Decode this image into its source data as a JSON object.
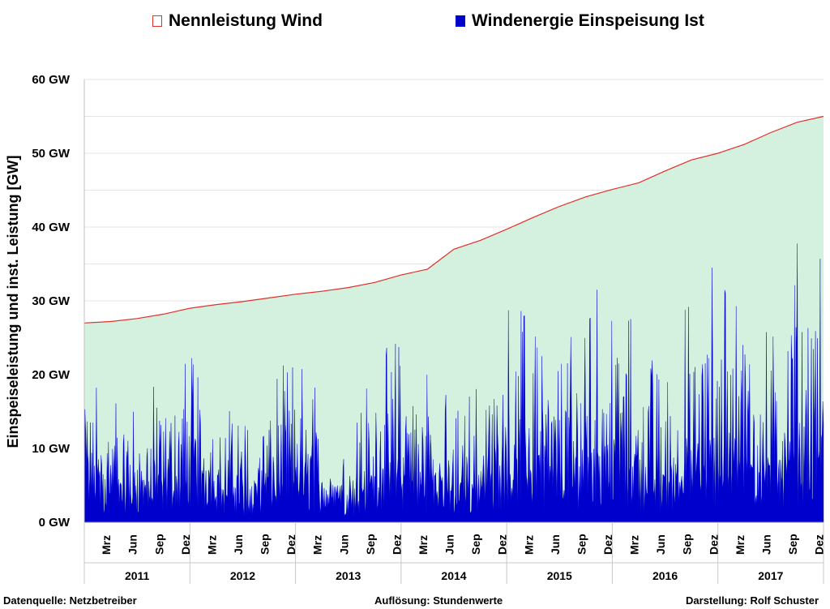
{
  "legend": {
    "capacity": "Nennleistung Wind",
    "feedin": "Windenergie Einspeisung Ist"
  },
  "footer": {
    "source": "Datenquelle:  Netzbetreiber",
    "resolution": "Auflösung: Stundenwerte",
    "author": "Darstellung: Rolf Schuster"
  },
  "chart_data": {
    "type": "area",
    "ylabel": "Einspeiseleistung und   inst. Leistung   [GW]",
    "ylim": [
      0,
      60
    ],
    "yticks": [
      "0 GW",
      "10 GW",
      "20 GW",
      "30 GW",
      "40 GW",
      "50 GW",
      "60 GW"
    ],
    "years": [
      "2011",
      "2012",
      "2013",
      "2014",
      "2015",
      "2016",
      "2017"
    ],
    "month_ticks": [
      "Mrz",
      "Jun",
      "Sep",
      "Dez"
    ],
    "grid": true,
    "legend_position": "top",
    "colors": {
      "capacity_line": "#e0302a",
      "capacity_fill": "#d4f0df",
      "feedin": "#0000cd",
      "grid": "#e4e4e4"
    },
    "series": [
      {
        "name": "Nennleistung Wind",
        "x": [
          "2011-01",
          "2011-04",
          "2011-07",
          "2011-10",
          "2012-01",
          "2012-04",
          "2012-07",
          "2012-10",
          "2013-01",
          "2013-04",
          "2013-07",
          "2013-10",
          "2014-01",
          "2014-04",
          "2014-07",
          "2014-10",
          "2015-01",
          "2015-04",
          "2015-07",
          "2015-10",
          "2016-01",
          "2016-04",
          "2016-07",
          "2016-10",
          "2017-01",
          "2017-04",
          "2017-07",
          "2017-10",
          "2017-12"
        ],
        "values": [
          27.0,
          27.2,
          27.6,
          28.2,
          29.0,
          29.5,
          29.9,
          30.4,
          30.9,
          31.3,
          31.8,
          32.5,
          33.5,
          34.3,
          37.0,
          38.2,
          39.7,
          41.3,
          42.8,
          44.1,
          45.1,
          46.0,
          47.6,
          49.1,
          50.0,
          51.2,
          52.8,
          54.2,
          55.0
        ]
      },
      {
        "name": "Windenergie Einspeisung Ist",
        "x": [
          "2011-01",
          "2011-04",
          "2011-07",
          "2011-10",
          "2012-01",
          "2012-04",
          "2012-07",
          "2012-10",
          "2013-01",
          "2013-04",
          "2013-07",
          "2013-10",
          "2014-01",
          "2014-04",
          "2014-07",
          "2014-10",
          "2015-01",
          "2015-04",
          "2015-07",
          "2015-10",
          "2016-01",
          "2016-04",
          "2016-07",
          "2016-10",
          "2017-01",
          "2017-04",
          "2017-07",
          "2017-10",
          "2017-12"
        ],
        "values_monthly_max": [
          22.0,
          18.5,
          15.5,
          20.5,
          23.5,
          19.5,
          14.0,
          19.5,
          23.0,
          18.0,
          12.0,
          22.0,
          26.0,
          23.0,
          15.0,
          20.0,
          29.5,
          29.5,
          22.0,
          31.5,
          33.5,
          25.5,
          20.0,
          32.0,
          37.5,
          35.0,
          25.0,
          39.5,
          37.0
        ]
      }
    ]
  }
}
